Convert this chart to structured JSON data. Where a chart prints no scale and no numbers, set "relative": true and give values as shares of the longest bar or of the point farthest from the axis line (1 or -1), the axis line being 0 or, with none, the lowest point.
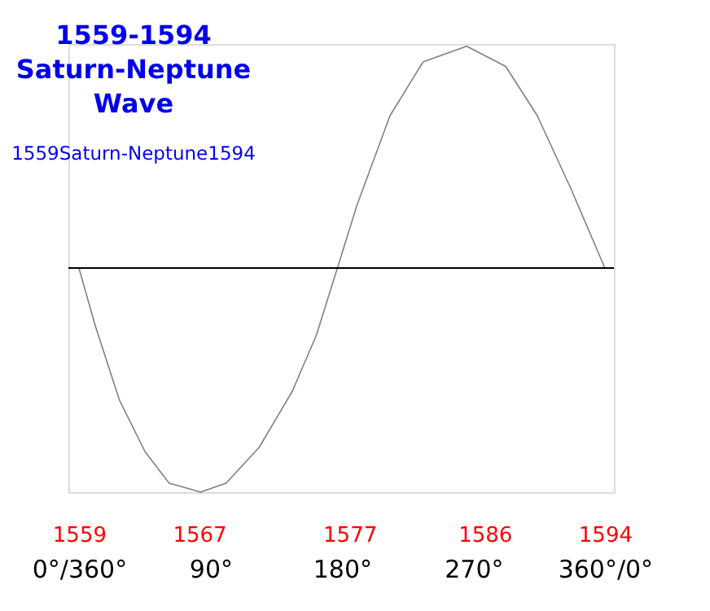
{
  "chart_data": {
    "type": "line",
    "relative": true,
    "title": "1559-1594 Saturn-Neptune Wave",
    "subtitle": "1559Saturn-Neptune1594",
    "x": [
      1559,
      1560.1,
      1561.7,
      1563.4,
      1565,
      1567.1,
      1568.8,
      1571,
      1573.2,
      1574.8,
      1576.2,
      1577.5,
      1579.7,
      1581.9,
      1584.8,
      1587.4,
      1589.5,
      1591.7,
      1594
    ],
    "series": [
      {
        "color": "#808080",
        "values": [
          0,
          -0.26,
          -0.59,
          -0.82,
          -0.96,
          -1,
          -0.96,
          -0.8,
          -0.55,
          -0.3,
          0,
          0.28,
          0.68,
          0.92,
          0.99,
          0.9,
          0.68,
          0.36,
          0
        ]
      }
    ],
    "xlim": [
      1558.3,
      1594.6
    ],
    "xticks": [
      1559,
      1567,
      1577,
      1586,
      1594
    ],
    "x2lim": [
      -7.2,
      366.2
    ],
    "x2ticks": [
      {
        "value": 0,
        "label": "0°/360°"
      },
      {
        "value": 90,
        "label": "90°"
      },
      {
        "value": 180,
        "label": "180°"
      },
      {
        "value": 270,
        "label": "270°"
      },
      {
        "value": 360,
        "label": "360°/0°"
      }
    ],
    "grid": false
  }
}
